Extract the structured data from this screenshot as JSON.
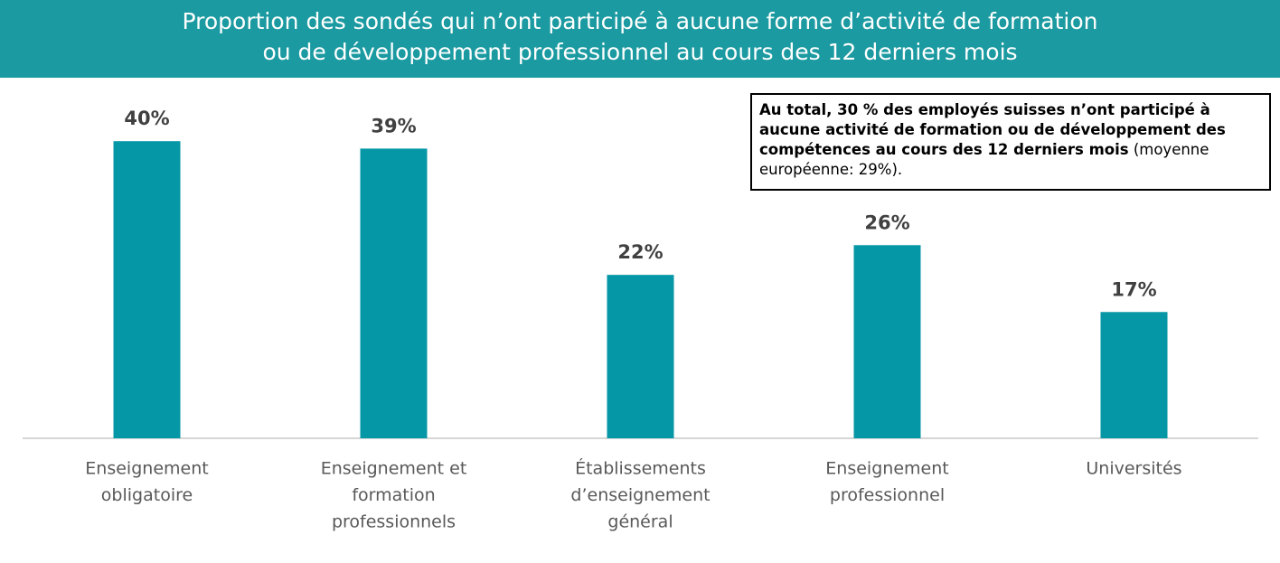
{
  "chart_data": {
    "type": "bar",
    "title": [
      "Proportion des sondés qui n’ont participé à aucune forme d’activité de formation",
      "ou de développement professionnel au cours des 12 derniers mois"
    ],
    "categories": [
      [
        "Enseignement",
        "obligatoire"
      ],
      [
        "Enseignement et",
        "formation",
        "professionnels"
      ],
      [
        "Établissements",
        "d’enseignement",
        "général"
      ],
      [
        "Enseignement",
        "professionnel"
      ],
      [
        "Universités"
      ]
    ],
    "values": [
      40,
      39,
      22,
      26,
      17
    ],
    "value_labels": [
      "40%",
      "39%",
      "22%",
      "26%",
      "17%"
    ],
    "color": "#0697a6",
    "annotation": {
      "bold": "Au total, 30 % des employés suisses n’ont participé à aucune activité de formation ou de développement des compétences au cours des 12 derniers mois",
      "normal": "(moyenne européenne: 29%)."
    }
  }
}
